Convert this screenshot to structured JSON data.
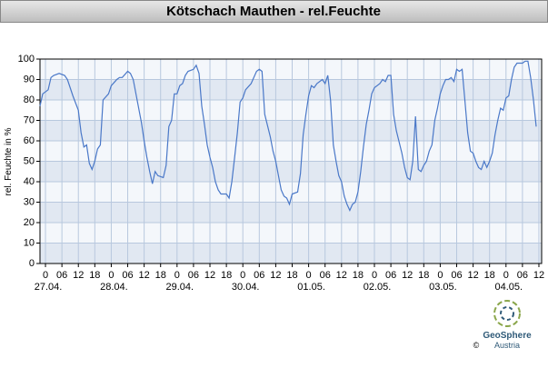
{
  "chart_data": {
    "type": "line",
    "title": "Kötschach Mauthen - rel.Feuchte",
    "y_label": "rel. Feuchte in %",
    "x": [
      -2,
      -1,
      1,
      2,
      3,
      5,
      7,
      8,
      10,
      12,
      13,
      14,
      15,
      16,
      17,
      18,
      19,
      20,
      21,
      23,
      24,
      26,
      27,
      28,
      30,
      31,
      32,
      33,
      35,
      36,
      37,
      38,
      39,
      40,
      41,
      43,
      44,
      45,
      46,
      47,
      48,
      49,
      50,
      51,
      52,
      54,
      55,
      56,
      57,
      58,
      59,
      60,
      61,
      62,
      63,
      64,
      65,
      66,
      67,
      68,
      69,
      70,
      71,
      72,
      73,
      75,
      76,
      77,
      78,
      79,
      80,
      82,
      83,
      84,
      85,
      86,
      87,
      88,
      89,
      90,
      92,
      93,
      94,
      95,
      96,
      97,
      98,
      99,
      101,
      102,
      103,
      104,
      105,
      106,
      107,
      108,
      109,
      110,
      111,
      112,
      113,
      114,
      115,
      116,
      117,
      118,
      119,
      120,
      122,
      123,
      124,
      125,
      126,
      127,
      128,
      130,
      131,
      132,
      133,
      134,
      135,
      136,
      137,
      138,
      139,
      140,
      141,
      142,
      143,
      144,
      145,
      146,
      147,
      148,
      149,
      150,
      151,
      152,
      153,
      154,
      155,
      156,
      157,
      158,
      159,
      160,
      161,
      162,
      163,
      164,
      165,
      166,
      167,
      168,
      169,
      170,
      171,
      172,
      173,
      174,
      175,
      176,
      177,
      178,
      179
    ],
    "series": [
      {
        "name": "rel.Feuchte",
        "color": "#4a78c8",
        "values": [
          77,
          83,
          85,
          91,
          92,
          93,
          92,
          90,
          82,
          75,
          64,
          57,
          58,
          49,
          46,
          50,
          56,
          58,
          80,
          83,
          87,
          90,
          91,
          91,
          94,
          93,
          90,
          83,
          69,
          60,
          52,
          45,
          39,
          45,
          43,
          42,
          48,
          67,
          70,
          83,
          83,
          87,
          88,
          92,
          94,
          95,
          97,
          93,
          77,
          68,
          58,
          52,
          47,
          40,
          36,
          34,
          34,
          34,
          32,
          40,
          52,
          64,
          79,
          81,
          85,
          88,
          91,
          94,
          95,
          94,
          73,
          62,
          55,
          50,
          43,
          36,
          33,
          32,
          29,
          34,
          35,
          44,
          63,
          73,
          82,
          87,
          86,
          88,
          90,
          88,
          92,
          80,
          58,
          50,
          43,
          40,
          33,
          29,
          26,
          29,
          30,
          35,
          45,
          57,
          68,
          75,
          83,
          86,
          88,
          90,
          89,
          92,
          92,
          73,
          65,
          54,
          47,
          42,
          41,
          50,
          72,
          46,
          45,
          48,
          50,
          55,
          58,
          70,
          76,
          83,
          87,
          90,
          90,
          91,
          89,
          95,
          94,
          95,
          80,
          64,
          55,
          54,
          50,
          47,
          46,
          50,
          47,
          50,
          54,
          63,
          70,
          76,
          75,
          81,
          82,
          90,
          96,
          98,
          98,
          98,
          99,
          99,
          91,
          80,
          67
        ]
      }
    ],
    "xlim": [
      -2,
      181
    ],
    "xticks": [
      {
        "value": 0,
        "label": "0"
      },
      {
        "value": 6,
        "label": "06"
      },
      {
        "value": 12,
        "label": "12"
      },
      {
        "value": 18,
        "label": "18"
      },
      {
        "value": 24,
        "label": "0"
      },
      {
        "value": 30,
        "label": "06"
      },
      {
        "value": 36,
        "label": "12"
      },
      {
        "value": 42,
        "label": "18"
      },
      {
        "value": 48,
        "label": "0"
      },
      {
        "value": 54,
        "label": "06"
      },
      {
        "value": 60,
        "label": "12"
      },
      {
        "value": 66,
        "label": "18"
      },
      {
        "value": 72,
        "label": "0"
      },
      {
        "value": 78,
        "label": "06"
      },
      {
        "value": 84,
        "label": "12"
      },
      {
        "value": 90,
        "label": "18"
      },
      {
        "value": 96,
        "label": "0"
      },
      {
        "value": 102,
        "label": "06"
      },
      {
        "value": 108,
        "label": "12"
      },
      {
        "value": 114,
        "label": "18"
      },
      {
        "value": 120,
        "label": "0"
      },
      {
        "value": 126,
        "label": "06"
      },
      {
        "value": 132,
        "label": "12"
      },
      {
        "value": 138,
        "label": "18"
      },
      {
        "value": 144,
        "label": "0"
      },
      {
        "value": 150,
        "label": "06"
      },
      {
        "value": 156,
        "label": "12"
      },
      {
        "value": 162,
        "label": "18"
      },
      {
        "value": 168,
        "label": "0"
      },
      {
        "value": 174,
        "label": "06"
      },
      {
        "value": 180,
        "label": "12"
      }
    ],
    "date_labels": [
      {
        "value": 0,
        "label": "27.04."
      },
      {
        "value": 24,
        "label": "28.04."
      },
      {
        "value": 48,
        "label": "29.04."
      },
      {
        "value": 72,
        "label": "30.04."
      },
      {
        "value": 96,
        "label": "01.05."
      },
      {
        "value": 120,
        "label": "02.05."
      },
      {
        "value": 144,
        "label": "03.05."
      },
      {
        "value": 168,
        "label": "04.05."
      }
    ],
    "ylim": [
      0,
      100
    ],
    "yticks": [
      0,
      10,
      20,
      30,
      40,
      50,
      60,
      70,
      80,
      90,
      100
    ],
    "grid": true
  },
  "logo": {
    "name": "GeoSphere",
    "sub": "Austria",
    "copyright": "©"
  }
}
